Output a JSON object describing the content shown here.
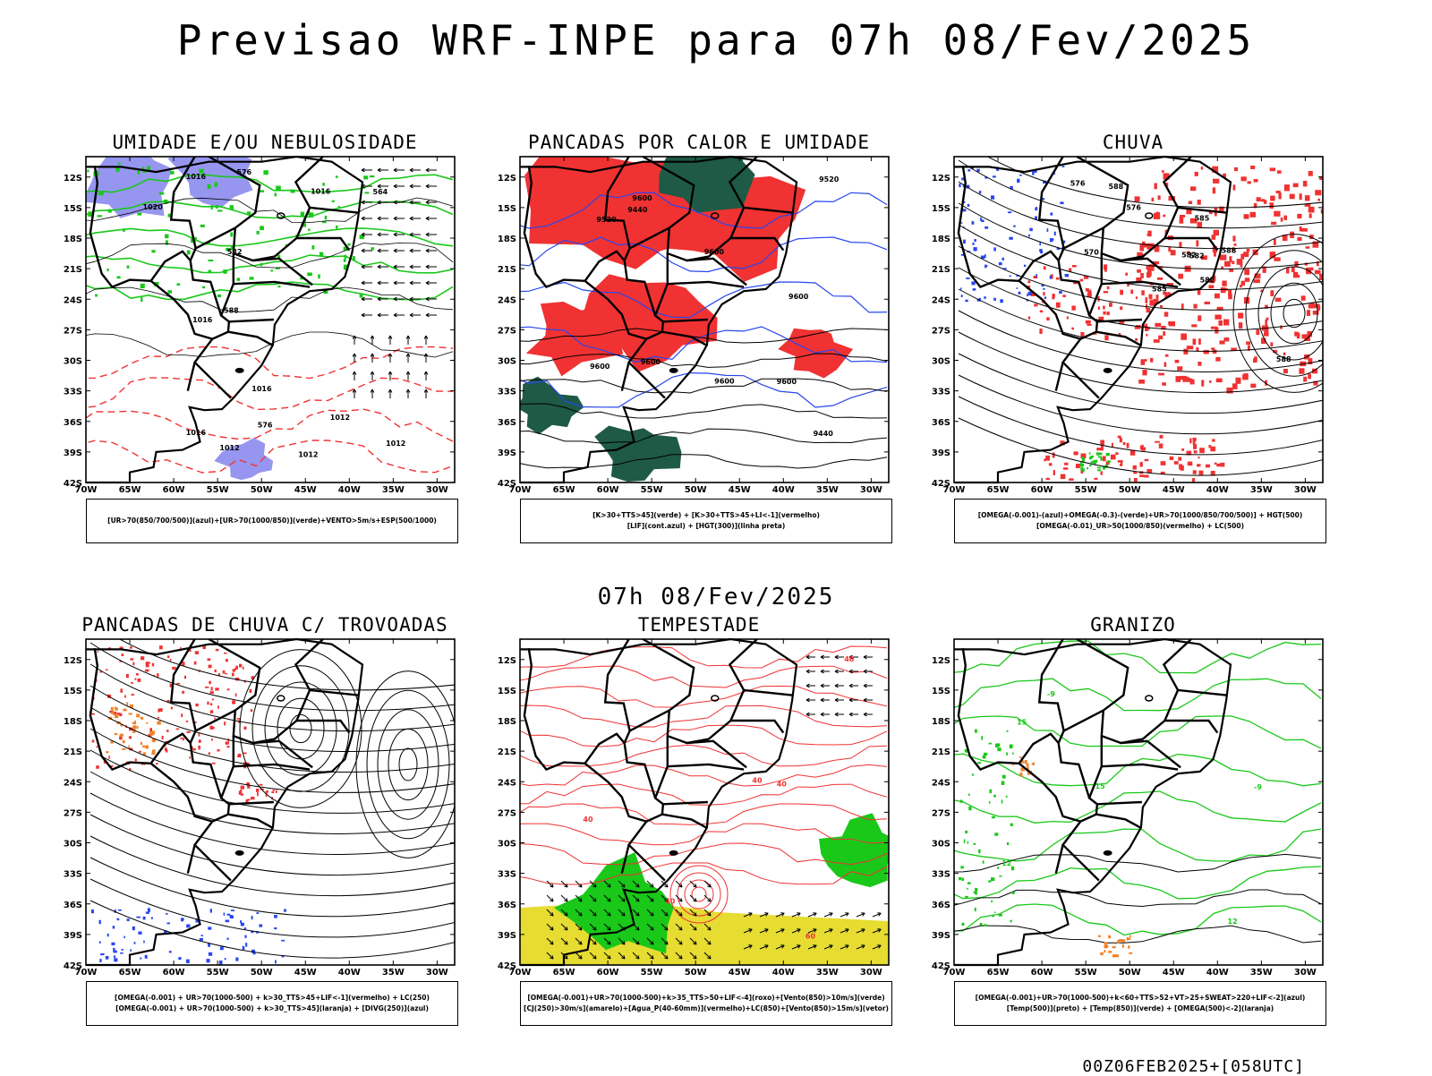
{
  "header": {
    "title": "Previsao WRF-INPE  para 07h 08/Fev/2025",
    "mid_title": "07h 08/Fev/2025",
    "footer": "00Z06FEB2025+[058UTC]"
  },
  "axes": {
    "lat_labels": [
      "12S",
      "15S",
      "18S",
      "21S",
      "24S",
      "27S",
      "30S",
      "33S",
      "36S",
      "39S",
      "42S"
    ],
    "lon_labels": [
      "70W",
      "65W",
      "60W",
      "55W",
      "50W",
      "45W",
      "40W",
      "35W",
      "30W"
    ]
  },
  "panels": [
    {
      "id": "umidade",
      "title": "UMIDADE E/OU NEBULOSIDADE",
      "legend": [
        "[UR>70(850/700/500)](azul)+[UR>70(1000/850)](verde)+VENTO>5m/s+ESP(500/1000)"
      ],
      "contour_labels": [
        "1012",
        "1012",
        "1016",
        "1012",
        "1016",
        "1020",
        "1016",
        "1012",
        "576",
        "582",
        "564",
        "576",
        "588",
        "1016",
        "1016"
      ]
    },
    {
      "id": "pancadas",
      "title": "PANCADAS POR CALOR E UMIDADE",
      "legend": [
        "[K>30+TTS>45](verde) + [K>30+TTS>45+LI<-1](vermelho)",
        "[LIF](cont.azul) + [HGT(300)](linha preta)"
      ],
      "contour_labels": [
        "9600",
        "9600",
        "9520",
        "9600",
        "9600",
        "9600",
        "9600",
        "9520",
        "9440",
        "9440",
        "9600"
      ]
    },
    {
      "id": "chuva",
      "title": "CHUVA",
      "legend": [
        "[OMEGA(-0.001)-(azul)+OMEGA(-0.3)-(verde)+UR>70(1000/850/700/500)] + HGT(500)",
        "[OMEGA(-0.01)_UR>50(1000/850)(vermelho) + LC(500)"
      ],
      "contour_labels": [
        "582",
        "582",
        "588",
        "585",
        "585",
        "588",
        "588",
        "582",
        "576",
        "576",
        "570"
      ]
    },
    {
      "id": "trovoadas",
      "title": "PANCADAS DE CHUVA C/ TROVOADAS",
      "legend": [
        "[OMEGA(-0.001) + UR>70(1000-500) + k>30_TTS>45+LIF<-1](vermelho) + LC(250)",
        "[OMEGA(-0.001) + UR>70(1000-500) + k>30_TTS>45](laranja) + [DIVG(250)](azul)"
      ],
      "contour_labels": []
    },
    {
      "id": "tempestade",
      "title": "TEMPESTADE",
      "legend": [
        "[OMEGA(-0.001)+UR>70(1000-500)+k>35_TTS>50+LIF<-4](roxo)+[Vento(850)>10m/s](verde)",
        "[CJ(250)>30m/s](amarelo)+[Agua_P(40-60mm)](vermelho)+LC(850)+[Vento(850)>15m/s](vetor)"
      ],
      "contour_labels": [
        "40",
        "40",
        "40",
        "40",
        "60",
        "40"
      ]
    },
    {
      "id": "granizo",
      "title": "GRANIZO",
      "legend": [
        "[OMEGA(-0.001)+UR>70(1000-500)+k<60+TTS>52+VT>25+SWEAT>220+LIF<-2](azul)",
        "[Temp(500)](preto) + [Temp(850)](verde) + [OMEGA(500)<-2](laranja)"
      ],
      "contour_labels": [
        "-9",
        "-9",
        "15",
        "12",
        "12",
        "15"
      ]
    }
  ],
  "colors": {
    "green": "#19c819",
    "red": "#f03232",
    "blue": "#2846f0",
    "lightblue": "#9696f0",
    "darkgreen": "#1e5a46",
    "yellow": "#e6dc32",
    "orange": "#f08228",
    "contour_red": "#f03232",
    "black": "#000000"
  }
}
